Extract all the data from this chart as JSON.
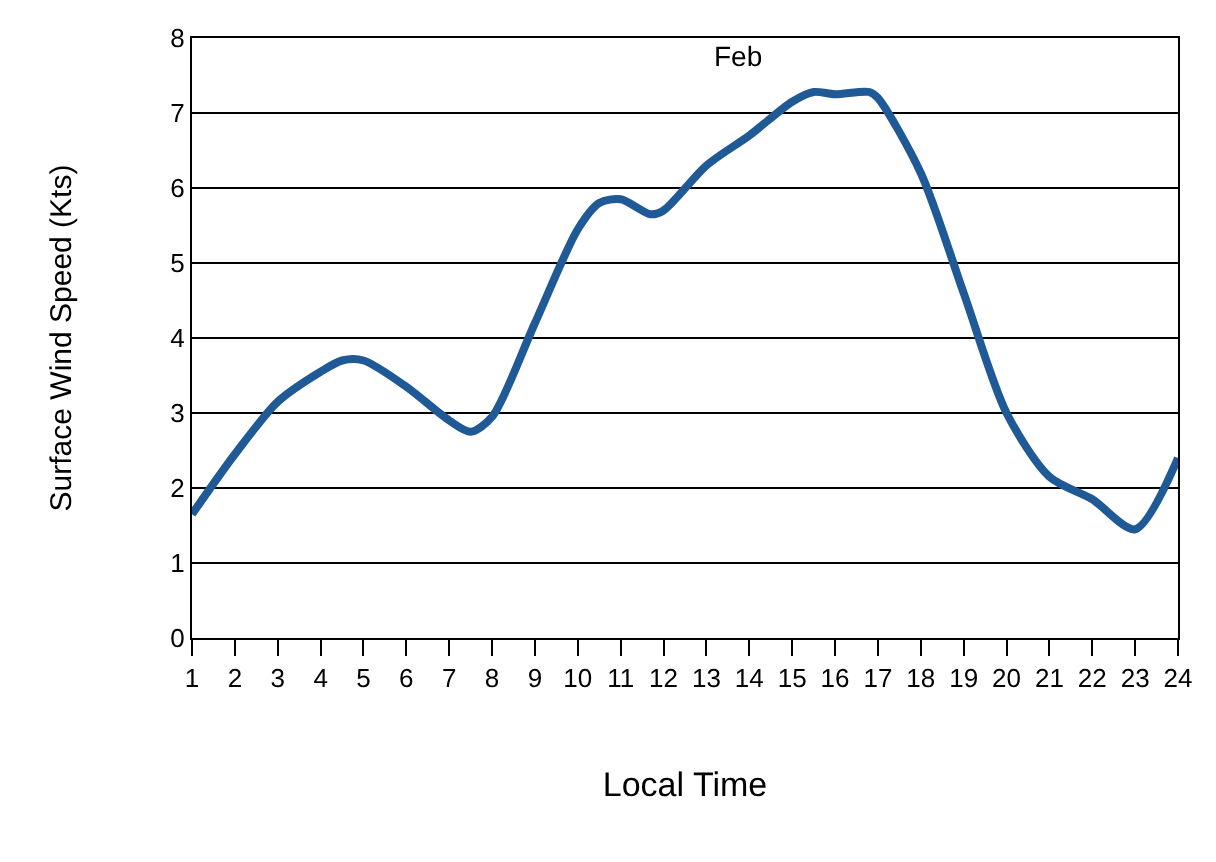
{
  "chart_data": {
    "type": "line",
    "title": "Feb",
    "xlabel": "Local Time",
    "ylabel": "Surface Wind Speed (Kts)",
    "xlim": [
      1,
      24
    ],
    "xticks": [
      1,
      2,
      3,
      4,
      5,
      6,
      7,
      8,
      9,
      10,
      11,
      12,
      13,
      14,
      15,
      16,
      17,
      18,
      19,
      20,
      21,
      22,
      23,
      24
    ],
    "ylim": [
      0,
      8
    ],
    "yticks": [
      0,
      1,
      2,
      3,
      4,
      5,
      6,
      7,
      8
    ],
    "grid": "y",
    "series": [
      {
        "color": "#1f5a96",
        "x": [
          1,
          2,
          3,
          4,
          4.5,
          5,
          6,
          7,
          7.5,
          8,
          9,
          10,
          10.5,
          11,
          11.7,
          12,
          13,
          14,
          15,
          15.5,
          16,
          16.8,
          17,
          18,
          19,
          20,
          21,
          22,
          23,
          24
        ],
        "values": [
          1.65,
          2.45,
          3.15,
          3.55,
          3.7,
          3.7,
          3.35,
          2.9,
          2.75,
          2.95,
          4.2,
          5.45,
          5.8,
          5.85,
          5.65,
          5.7,
          6.3,
          6.7,
          7.15,
          7.28,
          7.25,
          7.28,
          7.2,
          6.2,
          4.6,
          3.0,
          2.15,
          1.85,
          1.45,
          2.4
        ]
      }
    ]
  }
}
